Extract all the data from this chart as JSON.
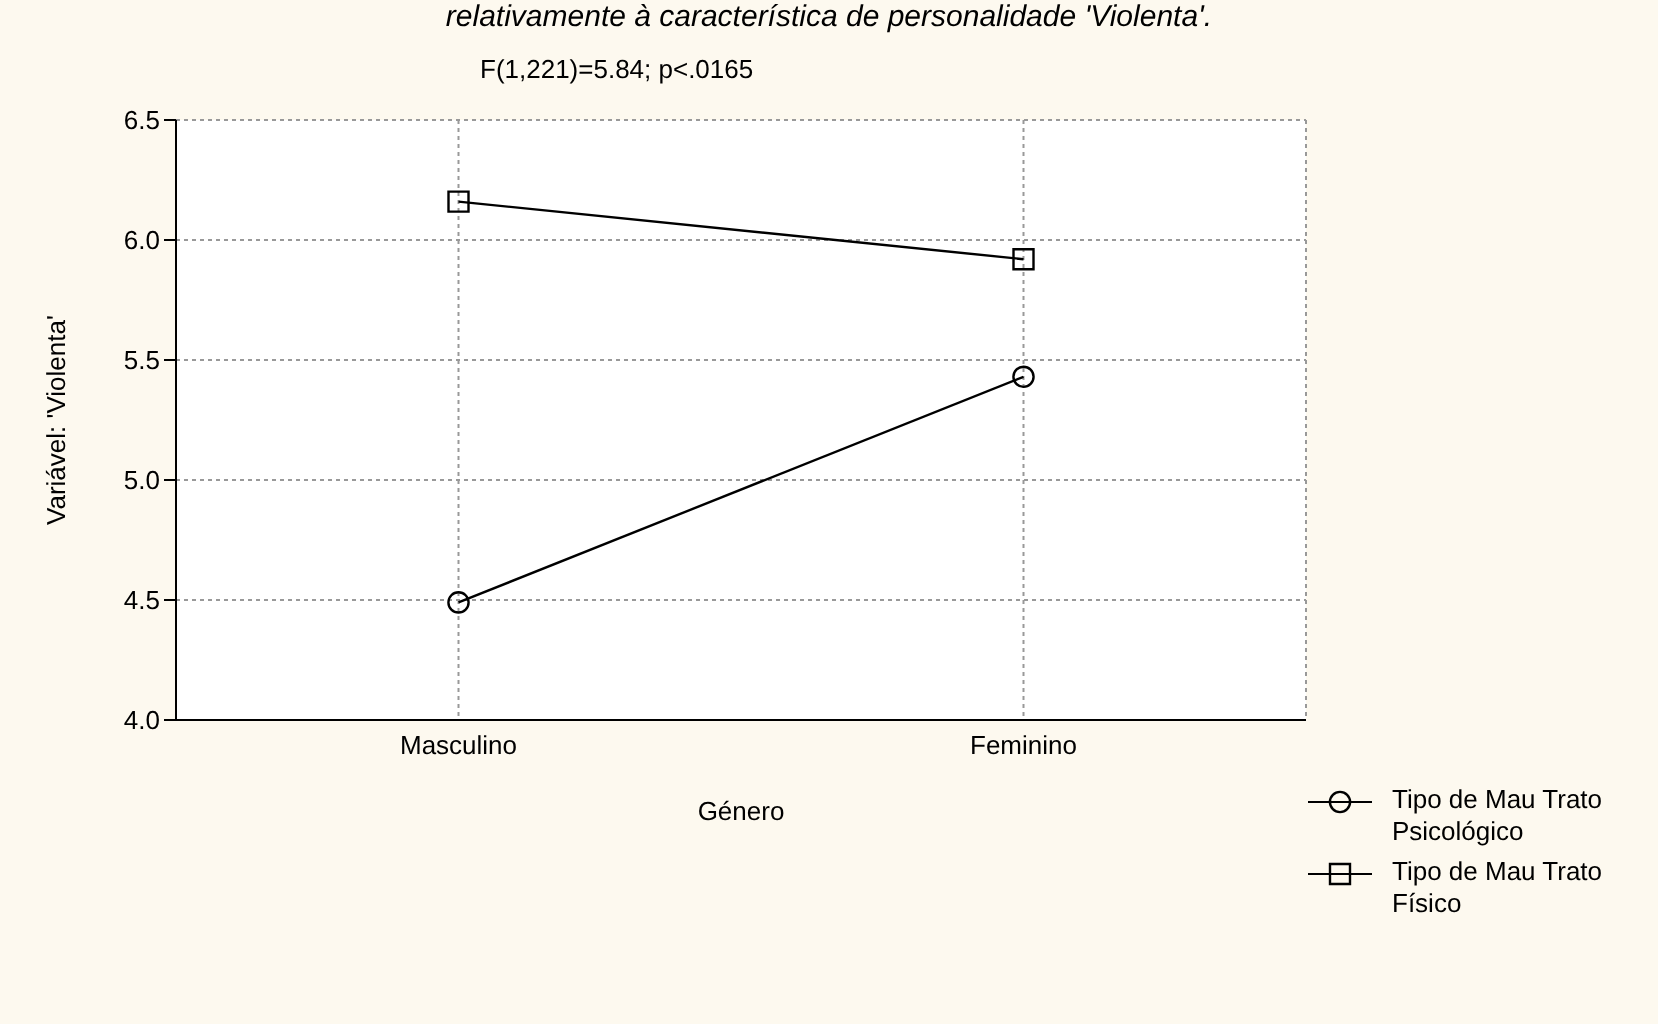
{
  "chart_data": {
    "type": "line",
    "title": "relativamente à característica de personalidade 'Violenta'.",
    "subtitle": "F(1,221)=5.84; p<.0165",
    "xlabel": "Género",
    "ylabel": "Variável: 'Violenta'",
    "categories": [
      "Masculino",
      "Feminino"
    ],
    "series": [
      {
        "name": "Tipo de Mau Trato Psicológico",
        "color": "#000000",
        "marker": "circle",
        "values": [
          4.49,
          5.43
        ]
      },
      {
        "name": "Tipo de Mau Trato Físico",
        "color": "#000000",
        "marker": "square",
        "values": [
          6.16,
          5.92
        ]
      }
    ],
    "ylim": [
      4.0,
      6.5
    ],
    "yticks": [
      {
        "value": 4.0,
        "label": "4.0"
      },
      {
        "value": 4.5,
        "label": "4.5"
      },
      {
        "value": 5.0,
        "label": "5.0"
      },
      {
        "value": 5.5,
        "label": "5.5"
      },
      {
        "value": 6.0,
        "label": "6.0"
      },
      {
        "value": 6.5,
        "label": "6.5"
      }
    ],
    "grid": true,
    "legend": "bottom right",
    "line_style": "solid"
  }
}
